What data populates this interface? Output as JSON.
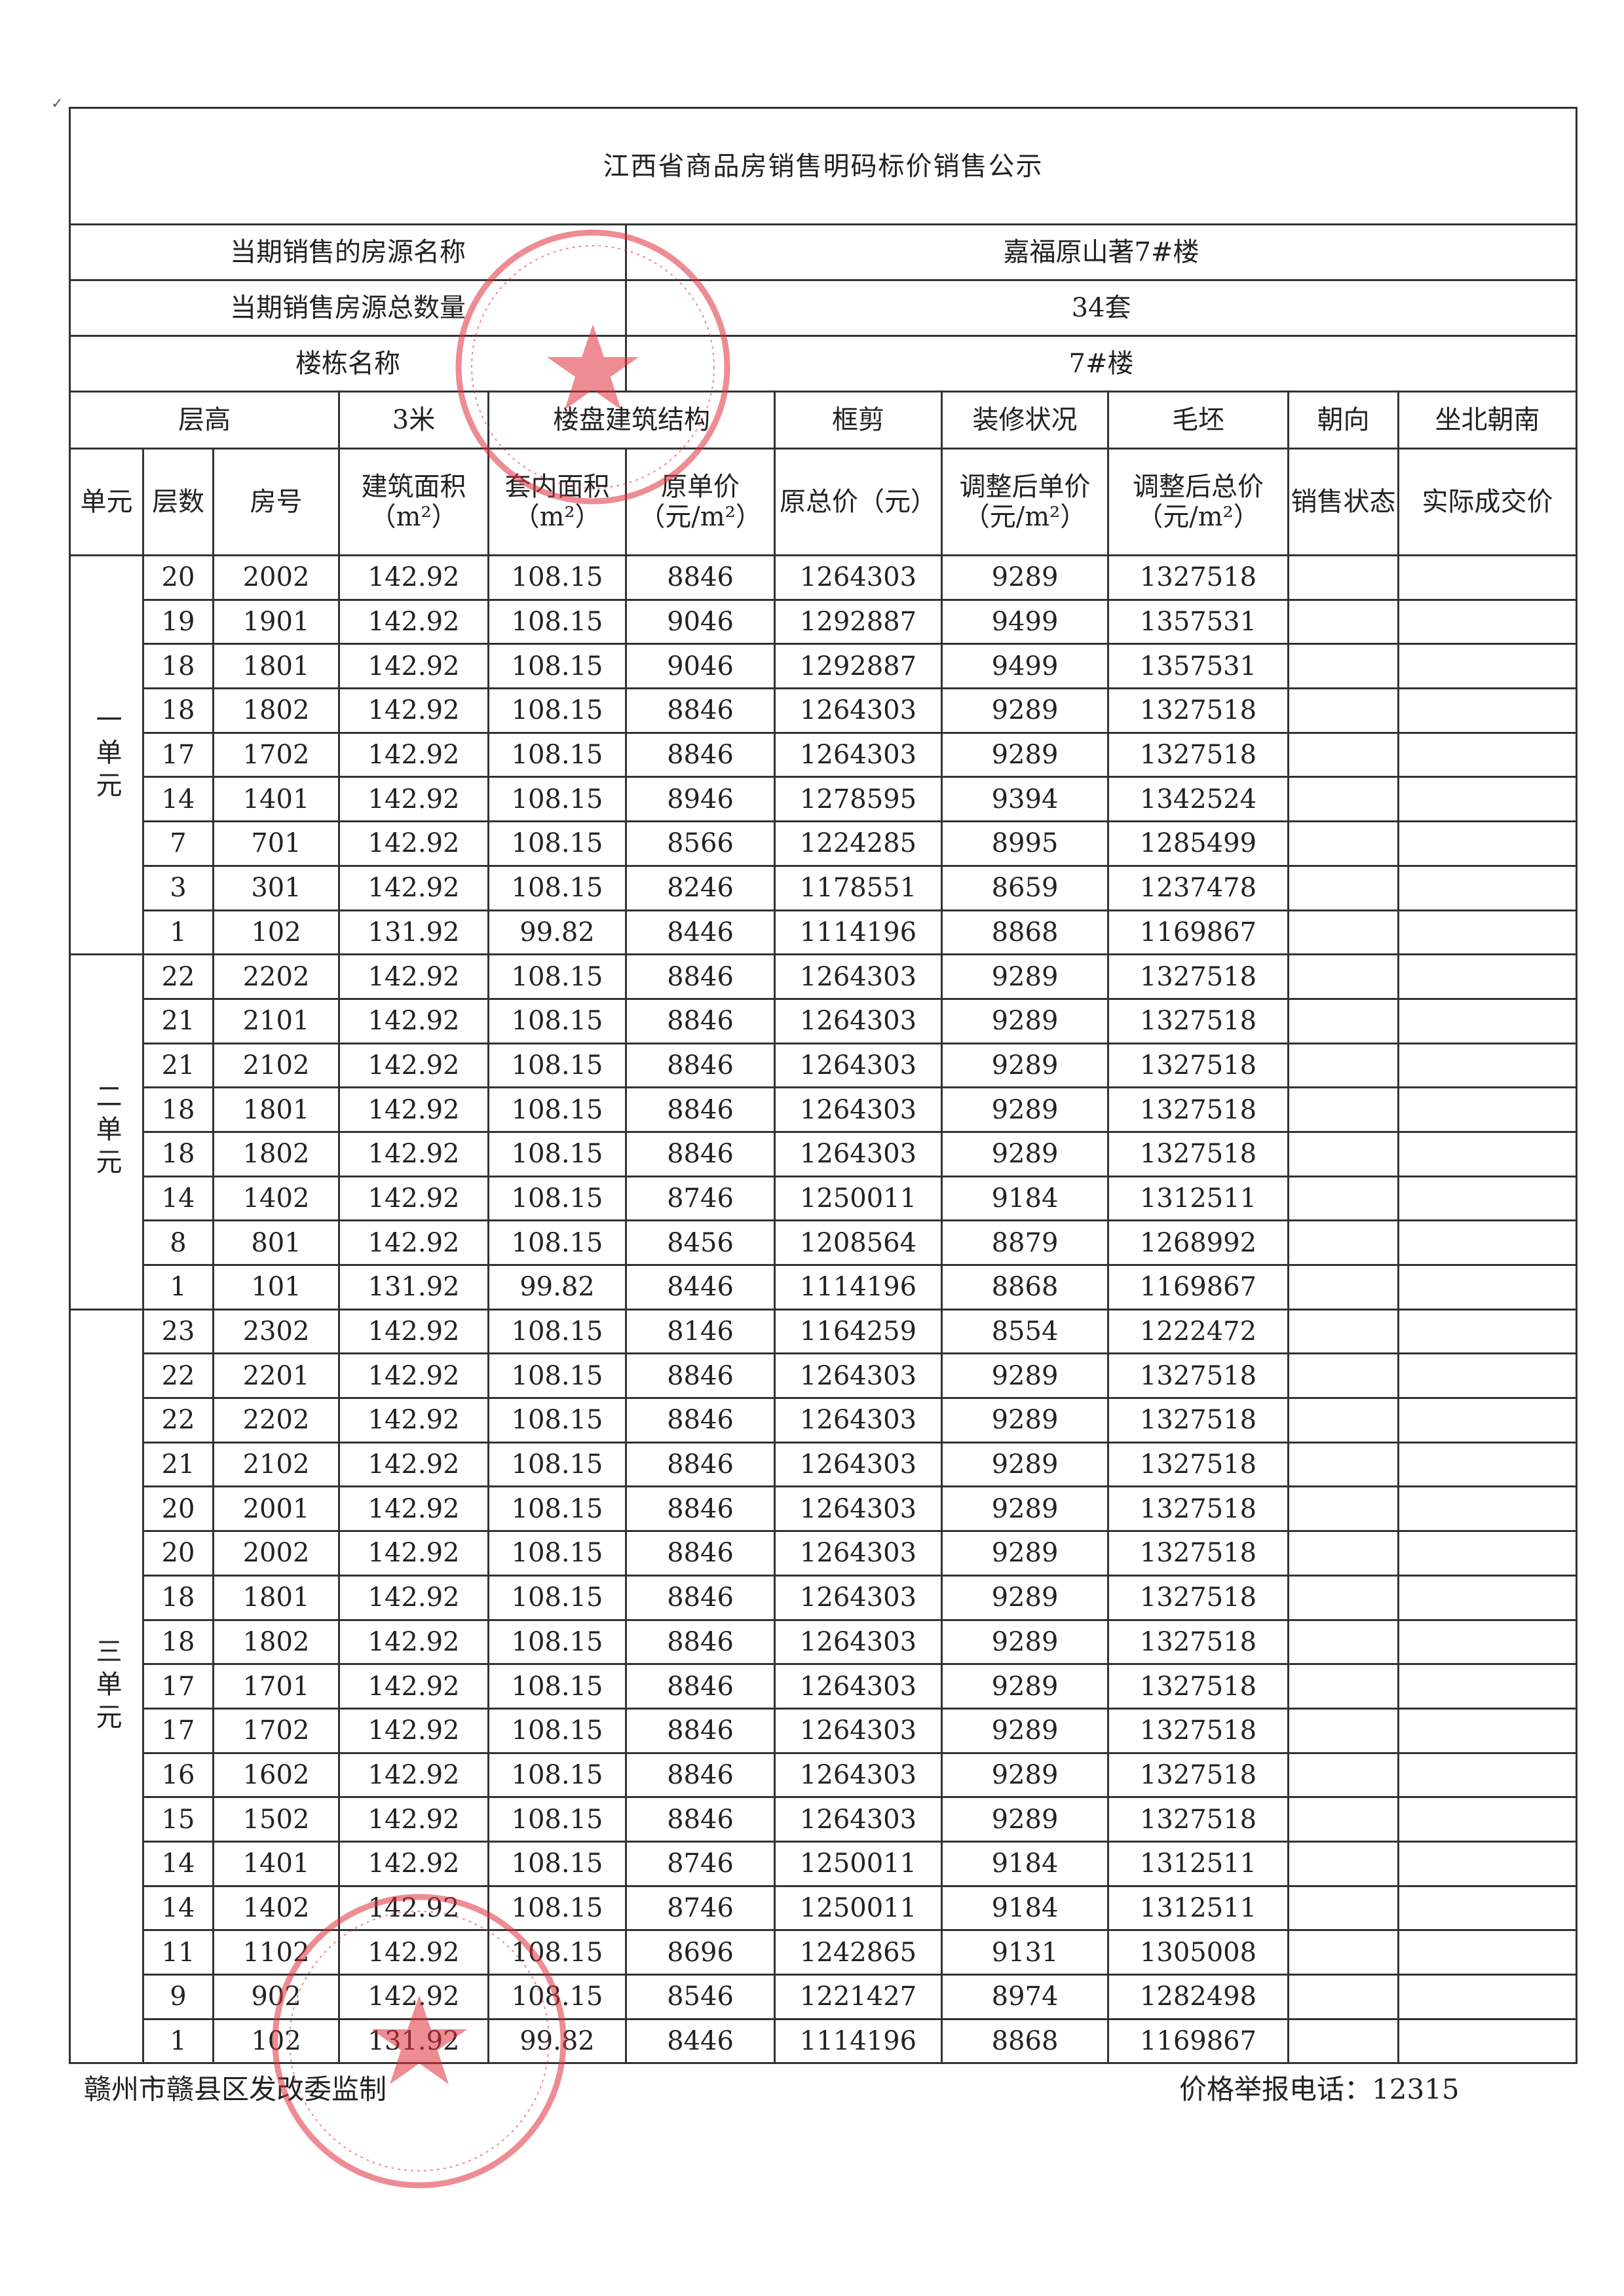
{
  "title": "江西省商品房销售明码标价销售公示",
  "info": [
    {
      "label": "当期销售的房源名称",
      "value": "嘉福原山著7#楼"
    },
    {
      "label": "当期销售房源总数量",
      "value": "34套"
    },
    {
      "label": "楼栋名称",
      "value": "7#楼"
    }
  ],
  "header_row1": {
    "floor_height_label": "层高",
    "floor_height_value": "3米",
    "structure_label": "楼盘建筑结构",
    "structure_value": "框剪",
    "decoration_label": "装修状况",
    "decoration_value": "毛坯",
    "orientation_label": "朝向",
    "orientation_value": "坐北朝南"
  },
  "columns": [
    "单元",
    "层数",
    "房号",
    "建筑面积（m²）",
    "套内面积（m²）",
    "原单价（元/m²）",
    "原总价（元）",
    "调整后单价（元/m²）",
    "调整后总价（元/m²）",
    "销售状态",
    "实际成交价"
  ],
  "units": [
    {
      "name": "一单元",
      "rows": [
        [
          "20",
          "2002",
          "142.92",
          "108.15",
          "8846",
          "1264303",
          "9289",
          "1327518",
          "",
          ""
        ],
        [
          "19",
          "1901",
          "142.92",
          "108.15",
          "9046",
          "1292887",
          "9499",
          "1357531",
          "",
          ""
        ],
        [
          "18",
          "1801",
          "142.92",
          "108.15",
          "9046",
          "1292887",
          "9499",
          "1357531",
          "",
          ""
        ],
        [
          "18",
          "1802",
          "142.92",
          "108.15",
          "8846",
          "1264303",
          "9289",
          "1327518",
          "",
          ""
        ],
        [
          "17",
          "1702",
          "142.92",
          "108.15",
          "8846",
          "1264303",
          "9289",
          "1327518",
          "",
          ""
        ],
        [
          "14",
          "1401",
          "142.92",
          "108.15",
          "8946",
          "1278595",
          "9394",
          "1342524",
          "",
          ""
        ],
        [
          "7",
          "701",
          "142.92",
          "108.15",
          "8566",
          "1224285",
          "8995",
          "1285499",
          "",
          ""
        ],
        [
          "3",
          "301",
          "142.92",
          "108.15",
          "8246",
          "1178551",
          "8659",
          "1237478",
          "",
          ""
        ],
        [
          "1",
          "102",
          "131.92",
          "99.82",
          "8446",
          "1114196",
          "8868",
          "1169867",
          "",
          ""
        ]
      ]
    },
    {
      "name": "二单元",
      "rows": [
        [
          "22",
          "2202",
          "142.92",
          "108.15",
          "8846",
          "1264303",
          "9289",
          "1327518",
          "",
          ""
        ],
        [
          "21",
          "2101",
          "142.92",
          "108.15",
          "8846",
          "1264303",
          "9289",
          "1327518",
          "",
          ""
        ],
        [
          "21",
          "2102",
          "142.92",
          "108.15",
          "8846",
          "1264303",
          "9289",
          "1327518",
          "",
          ""
        ],
        [
          "18",
          "1801",
          "142.92",
          "108.15",
          "8846",
          "1264303",
          "9289",
          "1327518",
          "",
          ""
        ],
        [
          "18",
          "1802",
          "142.92",
          "108.15",
          "8846",
          "1264303",
          "9289",
          "1327518",
          "",
          ""
        ],
        [
          "14",
          "1402",
          "142.92",
          "108.15",
          "8746",
          "1250011",
          "9184",
          "1312511",
          "",
          ""
        ],
        [
          "8",
          "801",
          "142.92",
          "108.15",
          "8456",
          "1208564",
          "8879",
          "1268992",
          "",
          ""
        ],
        [
          "1",
          "101",
          "131.92",
          "99.82",
          "8446",
          "1114196",
          "8868",
          "1169867",
          "",
          ""
        ]
      ]
    },
    {
      "name": "三单元",
      "rows": [
        [
          "23",
          "2302",
          "142.92",
          "108.15",
          "8146",
          "1164259",
          "8554",
          "1222472",
          "",
          ""
        ],
        [
          "22",
          "2201",
          "142.92",
          "108.15",
          "8846",
          "1264303",
          "9289",
          "1327518",
          "",
          ""
        ],
        [
          "22",
          "2202",
          "142.92",
          "108.15",
          "8846",
          "1264303",
          "9289",
          "1327518",
          "",
          ""
        ],
        [
          "21",
          "2102",
          "142.92",
          "108.15",
          "8846",
          "1264303",
          "9289",
          "1327518",
          "",
          ""
        ],
        [
          "20",
          "2001",
          "142.92",
          "108.15",
          "8846",
          "1264303",
          "9289",
          "1327518",
          "",
          ""
        ],
        [
          "20",
          "2002",
          "142.92",
          "108.15",
          "8846",
          "1264303",
          "9289",
          "1327518",
          "",
          ""
        ],
        [
          "18",
          "1801",
          "142.92",
          "108.15",
          "8846",
          "1264303",
          "9289",
          "1327518",
          "",
          ""
        ],
        [
          "18",
          "1802",
          "142.92",
          "108.15",
          "8846",
          "1264303",
          "9289",
          "1327518",
          "",
          ""
        ],
        [
          "17",
          "1701",
          "142.92",
          "108.15",
          "8846",
          "1264303",
          "9289",
          "1327518",
          "",
          ""
        ],
        [
          "17",
          "1702",
          "142.92",
          "108.15",
          "8846",
          "1264303",
          "9289",
          "1327518",
          "",
          ""
        ],
        [
          "16",
          "1602",
          "142.92",
          "108.15",
          "8846",
          "1264303",
          "9289",
          "1327518",
          "",
          ""
        ],
        [
          "15",
          "1502",
          "142.92",
          "108.15",
          "8846",
          "1264303",
          "9289",
          "1327518",
          "",
          ""
        ],
        [
          "14",
          "1401",
          "142.92",
          "108.15",
          "8746",
          "1250011",
          "9184",
          "1312511",
          "",
          ""
        ],
        [
          "14",
          "1402",
          "142.92",
          "108.15",
          "8746",
          "1250011",
          "9184",
          "1312511",
          "",
          ""
        ],
        [
          "11",
          "1102",
          "142.92",
          "108.15",
          "8696",
          "1242865",
          "9131",
          "1305008",
          "",
          ""
        ],
        [
          "9",
          "902",
          "142.92",
          "108.15",
          "8546",
          "1221427",
          "8974",
          "1282498",
          "",
          ""
        ],
        [
          "1",
          "102",
          "131.92",
          "99.82",
          "8446",
          "1114196",
          "8868",
          "1169867",
          "",
          ""
        ]
      ]
    }
  ],
  "footer": {
    "issuer": "赣州市赣县区发改委监制",
    "hotline": "价格举报电话：12315"
  },
  "colors": {
    "stamp": "#e0303a",
    "line": "#333333"
  }
}
